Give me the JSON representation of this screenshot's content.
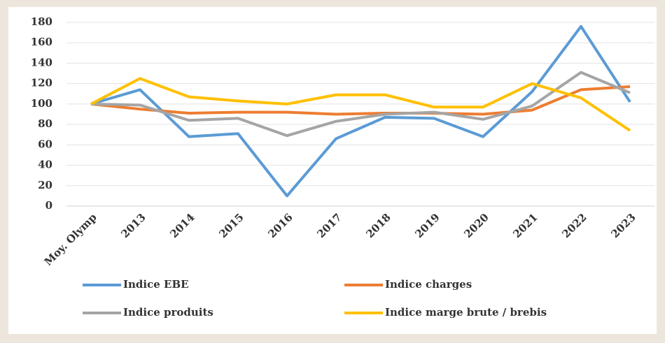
{
  "chart_data": {
    "type": "line",
    "categories": [
      "Moy. Olymp",
      "2013",
      "2014",
      "2015",
      "2016",
      "2017",
      "2018",
      "2019",
      "2020",
      "2021",
      "2022",
      "2023"
    ],
    "series": [
      {
        "name": "Indice EBE",
        "color": "#5b9bd5",
        "values": [
          100,
          114,
          68,
          71,
          10,
          66,
          87,
          86,
          68,
          112,
          176,
          102
        ]
      },
      {
        "name": "Indice charges",
        "color": "#ed7d31",
        "values": [
          100,
          95,
          91,
          92,
          92,
          90,
          91,
          91,
          90,
          94,
          114,
          117
        ]
      },
      {
        "name": "Indice produits",
        "color": "#a5a5a5",
        "values": [
          100,
          99,
          84,
          86,
          69,
          83,
          90,
          92,
          85,
          98,
          131,
          111
        ]
      },
      {
        "name": "Indice marge brute / brebis",
        "color": "#ffc000",
        "values": [
          100,
          125,
          107,
          103,
          100,
          109,
          109,
          97,
          97,
          120,
          106,
          74
        ]
      }
    ],
    "ylim": [
      0,
      180
    ],
    "yticks": [
      0,
      20,
      40,
      60,
      80,
      100,
      120,
      140,
      160,
      180
    ],
    "grid": true
  }
}
